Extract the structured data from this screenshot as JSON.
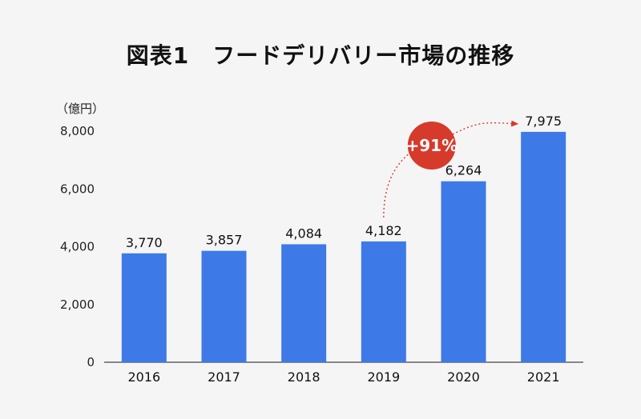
{
  "chart_data": {
    "type": "bar",
    "title": "図表1　フードデリバリー市場の推移",
    "ylabel": "（億円）",
    "xlabel": "",
    "categories": [
      "2016",
      "2017",
      "2018",
      "2019",
      "2020",
      "2021"
    ],
    "values": [
      3770,
      3857,
      4084,
      4182,
      6264,
      7975
    ],
    "value_labels": [
      "3,770",
      "3,857",
      "4,084",
      "4,182",
      "6,264",
      "7,975"
    ],
    "ylim": [
      0,
      8000
    ],
    "yticks": [
      0,
      2000,
      4000,
      6000,
      8000
    ],
    "ytick_labels": [
      "0",
      "2,000",
      "4,000",
      "6,000",
      "8,000"
    ],
    "grid": false,
    "bar_color": "#3d7ae8",
    "annotation": {
      "text": "+91%",
      "from_category": "2019",
      "to_category": "2021",
      "color": "#d63a2b"
    }
  }
}
